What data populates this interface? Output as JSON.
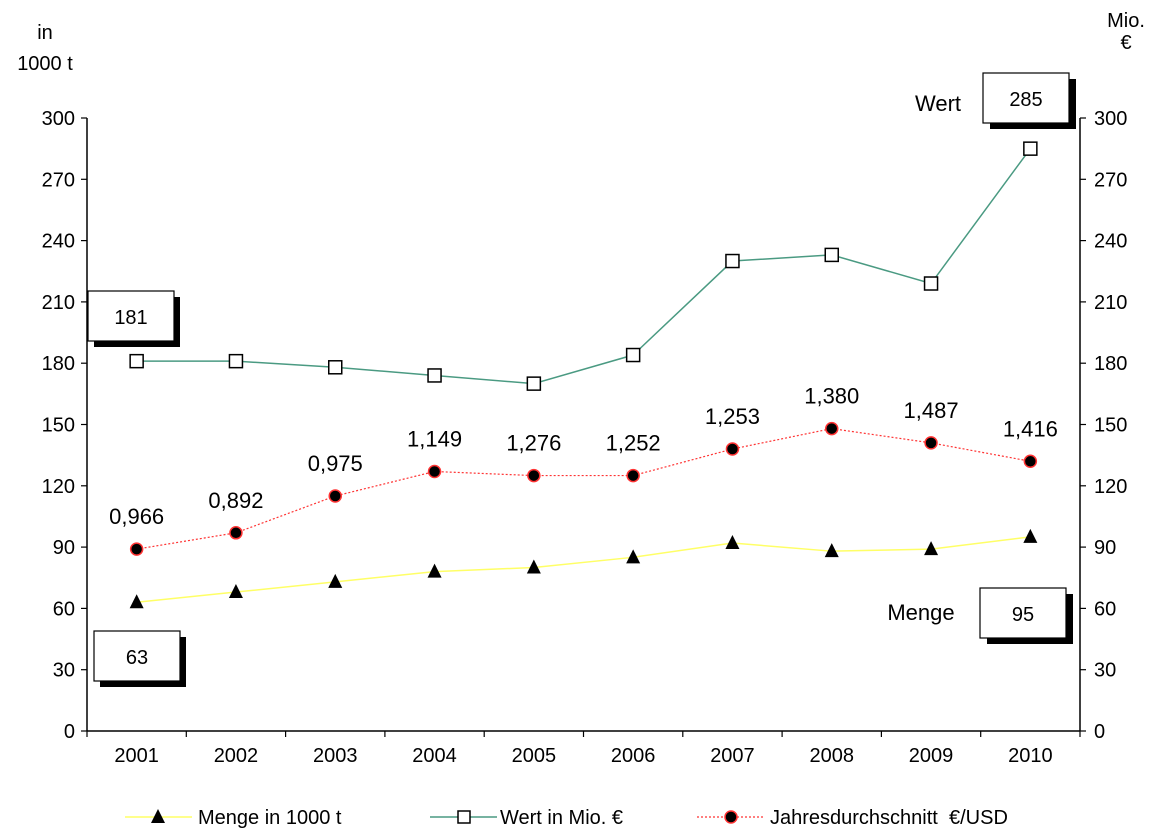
{
  "chart_data": {
    "type": "line",
    "left_axis_title": [
      "in",
      "1000 t"
    ],
    "right_axis_title": [
      "Mio.",
      "€"
    ],
    "categories": [
      "2001",
      "2002",
      "2003",
      "2004",
      "2005",
      "2006",
      "2007",
      "2008",
      "2009",
      "2010"
    ],
    "ylim": [
      0,
      300
    ],
    "y_ticks": [
      0,
      30,
      60,
      90,
      120,
      150,
      180,
      210,
      240,
      270,
      300
    ],
    "y2lim": [
      0,
      300
    ],
    "y2_ticks": [
      0,
      30,
      60,
      90,
      120,
      150,
      180,
      210,
      240,
      270,
      300
    ],
    "grid": false,
    "legend_position": "bottom",
    "series": [
      {
        "key": "menge",
        "name": "Menge in 1000 t",
        "values": [
          63,
          68,
          73,
          78,
          80,
          85,
          92,
          88,
          89,
          95
        ],
        "color": "#ffff66",
        "marker": "triangle-filled"
      },
      {
        "key": "wert",
        "name": "Wert in Mio. €",
        "values": [
          181,
          181,
          178,
          174,
          170,
          184,
          230,
          233,
          219,
          285
        ],
        "color": "#4a9a82",
        "marker": "square-open"
      },
      {
        "key": "kurs",
        "name": "Jahresdurchschnitt  €/USD",
        "values": [
          89,
          97,
          115,
          127,
          125,
          125,
          138,
          148,
          141,
          132
        ],
        "data_labels": [
          "0,966",
          "0,892",
          "0,975",
          "1,149",
          "1,276",
          "1,252",
          "1,253",
          "1,380",
          "1,487",
          "1,416"
        ],
        "color": "#ff3333",
        "marker": "circle-filled-red-edge"
      }
    ],
    "annotations": {
      "wert_start": "181",
      "menge_start": "63",
      "wert_end_label": "Wert",
      "wert_end": "285",
      "menge_end_label": "Menge",
      "menge_end": "95"
    }
  }
}
